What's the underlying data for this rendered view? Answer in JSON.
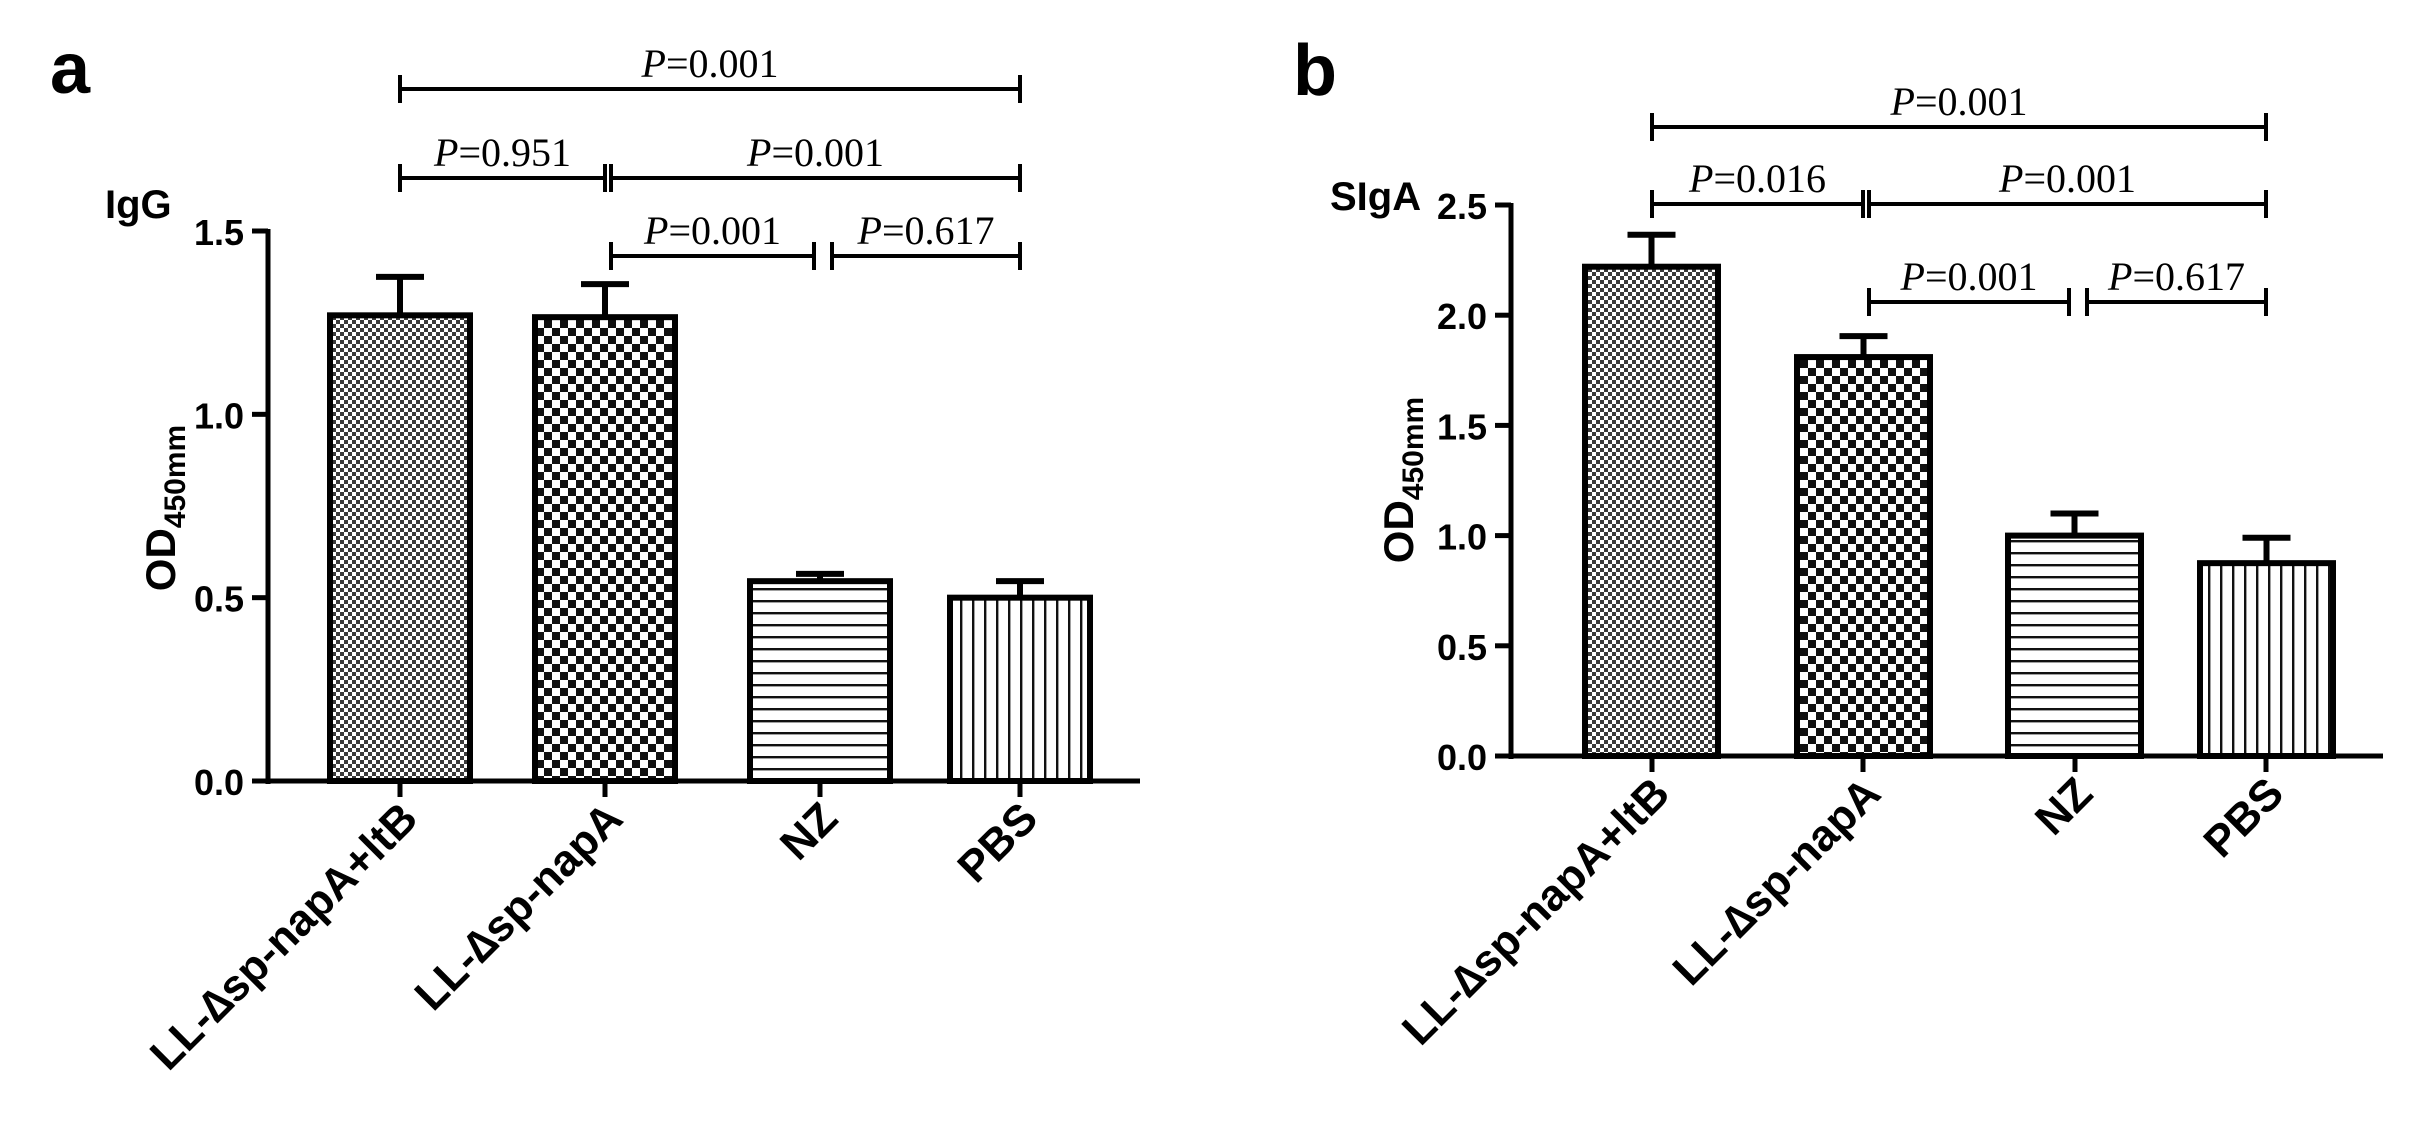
{
  "chart_data": [
    {
      "panel_label": "a",
      "type": "bar",
      "title": "IgG",
      "ylabel_main": "OD",
      "ylabel_sub": "450mm",
      "categories": [
        "LL-∆sp-napA+ltB",
        "LL-∆sp-napA",
        "NZ",
        "PBS"
      ],
      "patterns": [
        "fine-check",
        "check",
        "horizontal",
        "vertical"
      ],
      "values": [
        1.27,
        1.265,
        0.545,
        0.5
      ],
      "errors": [
        0.105,
        0.09,
        0.02,
        0.045
      ],
      "ylim": [
        0,
        1.5
      ],
      "yticks": [
        0.0,
        0.5,
        1.0,
        1.5
      ],
      "ytick_labels": [
        "0.0",
        "0.5",
        "1.0",
        "1.5"
      ],
      "comparisons": [
        {
          "from": 0,
          "to": 3,
          "p_symbol": "P",
          "p_value": "=0.001"
        },
        {
          "from": 0,
          "to": 1,
          "p_symbol": "P",
          "p_value": "=0.951"
        },
        {
          "from": 1,
          "to": 3,
          "p_symbol": "P",
          "p_value": "=0.001"
        },
        {
          "from": 1,
          "to": 2,
          "p_symbol": "P",
          "p_value": "=0.001"
        },
        {
          "from": 2,
          "to": 3,
          "p_symbol": "P",
          "p_value": "=0.617"
        }
      ]
    },
    {
      "panel_label": "b",
      "type": "bar",
      "title": "SIgA",
      "ylabel_main": "OD",
      "ylabel_sub": "450mm",
      "categories": [
        "LL-∆sp-napA+ltB",
        "LL-∆sp-napA",
        "NZ",
        "PBS"
      ],
      "patterns": [
        "fine-check",
        "check",
        "horizontal",
        "vertical"
      ],
      "values": [
        2.22,
        1.81,
        1.0,
        0.875
      ],
      "errors": [
        0.145,
        0.095,
        0.1,
        0.115
      ],
      "ylim": [
        0,
        2.5
      ],
      "yticks": [
        0.0,
        0.5,
        1.0,
        1.5,
        2.0,
        2.5
      ],
      "ytick_labels": [
        "0.0",
        "0.5",
        "1.0",
        "1.5",
        "2.0",
        "2.5"
      ],
      "comparisons": [
        {
          "from": 0,
          "to": 3,
          "p_symbol": "P",
          "p_value": "=0.001"
        },
        {
          "from": 0,
          "to": 1,
          "p_symbol": "P",
          "p_value": "=0.016"
        },
        {
          "from": 1,
          "to": 3,
          "p_symbol": "P",
          "p_value": "=0.001"
        },
        {
          "from": 1,
          "to": 2,
          "p_symbol": "P",
          "p_value": "=0.001"
        },
        {
          "from": 2,
          "to": 3,
          "p_symbol": "P",
          "p_value": "=0.617"
        }
      ]
    }
  ]
}
